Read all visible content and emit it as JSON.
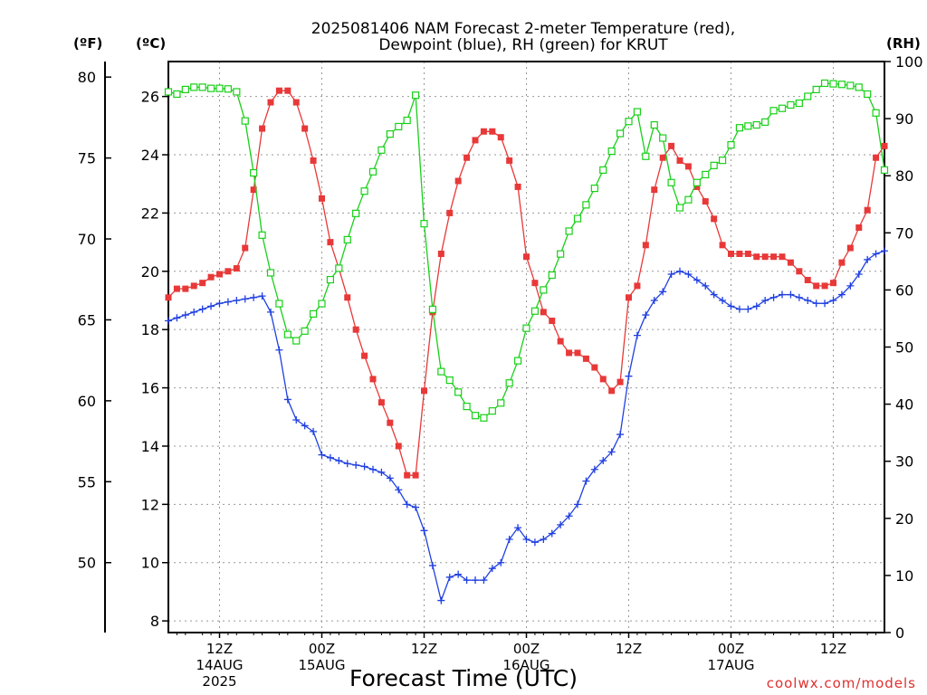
{
  "chart_data": {
    "type": "line",
    "title": [
      "2025081406 NAM Forecast 2-meter Temperature (red),",
      "Dewpoint (blue), RH (green) for KRUT"
    ],
    "xlabel": "Forecast Time (UTC)",
    "units": {
      "fahrenheit": "(ºF)",
      "celsius": "(ºC)",
      "rh": "(RH)"
    },
    "credit": "coolwx.com/models",
    "x_range_hours": [
      0,
      84
    ],
    "x_ticks": [
      {
        "hour": 6,
        "lines": [
          "12Z",
          "14AUG",
          "2025"
        ]
      },
      {
        "hour": 18,
        "lines": [
          "00Z",
          "15AUG"
        ]
      },
      {
        "hour": 30,
        "lines": [
          "12Z"
        ]
      },
      {
        "hour": 42,
        "lines": [
          "00Z",
          "16AUG"
        ]
      },
      {
        "hour": 54,
        "lines": [
          "12Z"
        ]
      },
      {
        "hour": 66,
        "lines": [
          "00Z",
          "17AUG"
        ]
      },
      {
        "hour": 78,
        "lines": [
          "12Z"
        ]
      }
    ],
    "y_celsius": {
      "range": [
        7.6,
        27.2
      ],
      "ticks": [
        8,
        10,
        12,
        14,
        16,
        18,
        20,
        22,
        24,
        26
      ]
    },
    "y_fahrenheit": {
      "ticks": [
        50,
        55,
        60,
        65,
        70,
        75,
        80
      ]
    },
    "y_rh": {
      "range": [
        0,
        100
      ],
      "ticks": [
        0,
        10,
        20,
        30,
        40,
        50,
        60,
        70,
        80,
        90,
        100
      ]
    },
    "grid": true,
    "colors": {
      "temperature": "#e83838",
      "dewpoint": "#2040e0",
      "rh": "#18d018"
    },
    "series": [
      {
        "key": "temperature",
        "unit": "C",
        "marker": "filled-square",
        "points": [
          [
            0,
            19.1
          ],
          [
            1,
            19.4
          ],
          [
            2,
            19.4
          ],
          [
            3,
            19.5
          ],
          [
            4,
            19.6
          ],
          [
            5,
            19.8
          ],
          [
            6,
            19.9
          ],
          [
            7,
            20.0
          ],
          [
            8,
            20.1
          ],
          [
            9,
            20.8
          ],
          [
            10,
            22.8
          ],
          [
            11,
            24.9
          ],
          [
            12,
            25.8
          ],
          [
            13,
            26.2
          ],
          [
            14,
            26.2
          ],
          [
            15,
            25.8
          ],
          [
            16,
            24.9
          ],
          [
            17,
            23.8
          ],
          [
            18,
            22.5
          ],
          [
            19,
            21.0
          ],
          [
            20,
            20.1
          ],
          [
            21,
            19.1
          ],
          [
            22,
            18.0
          ],
          [
            23,
            17.1
          ],
          [
            24,
            16.3
          ],
          [
            25,
            15.5
          ],
          [
            26,
            14.8
          ],
          [
            27,
            14.0
          ],
          [
            28,
            13.0
          ],
          [
            29,
            13.0
          ],
          [
            30,
            15.9
          ],
          [
            31,
            18.6
          ],
          [
            32,
            20.6
          ],
          [
            33,
            22.0
          ],
          [
            34,
            23.1
          ],
          [
            35,
            23.9
          ],
          [
            36,
            24.5
          ],
          [
            37,
            24.8
          ],
          [
            38,
            24.8
          ],
          [
            39,
            24.6
          ],
          [
            40,
            23.8
          ],
          [
            41,
            22.9
          ],
          [
            42,
            20.5
          ],
          [
            43,
            19.6
          ],
          [
            44,
            18.6
          ],
          [
            45,
            18.3
          ],
          [
            46,
            17.6
          ],
          [
            47,
            17.2
          ],
          [
            48,
            17.2
          ],
          [
            49,
            17.0
          ],
          [
            50,
            16.7
          ],
          [
            51,
            16.3
          ],
          [
            52,
            15.9
          ],
          [
            53,
            16.2
          ],
          [
            54,
            19.1
          ],
          [
            55,
            19.5
          ],
          [
            56,
            20.9
          ],
          [
            57,
            22.8
          ],
          [
            58,
            23.9
          ],
          [
            59,
            24.3
          ],
          [
            60,
            23.8
          ],
          [
            61,
            23.6
          ],
          [
            62,
            22.9
          ],
          [
            63,
            22.4
          ],
          [
            64,
            21.8
          ],
          [
            65,
            20.9
          ],
          [
            66,
            20.6
          ],
          [
            67,
            20.6
          ],
          [
            68,
            20.6
          ],
          [
            69,
            20.5
          ],
          [
            70,
            20.5
          ],
          [
            71,
            20.5
          ],
          [
            72,
            20.5
          ],
          [
            73,
            20.3
          ],
          [
            74,
            20.0
          ],
          [
            75,
            19.7
          ],
          [
            76,
            19.5
          ],
          [
            77,
            19.5
          ],
          [
            78,
            19.6
          ],
          [
            79,
            20.3
          ],
          [
            80,
            20.8
          ],
          [
            81,
            21.5
          ],
          [
            82,
            22.1
          ],
          [
            83,
            23.9
          ],
          [
            84,
            24.3
          ]
        ]
      },
      {
        "key": "dewpoint",
        "unit": "C",
        "marker": "plus",
        "points": [
          [
            0,
            18.3
          ],
          [
            1,
            18.4
          ],
          [
            2,
            18.5
          ],
          [
            3,
            18.6
          ],
          [
            4,
            18.7
          ],
          [
            5,
            18.8
          ],
          [
            6,
            18.9
          ],
          [
            7,
            18.95
          ],
          [
            8,
            19.0
          ],
          [
            9,
            19.05
          ],
          [
            10,
            19.1
          ],
          [
            11,
            19.15
          ],
          [
            12,
            18.6
          ],
          [
            13,
            17.3
          ],
          [
            14,
            15.6
          ],
          [
            15,
            14.9
          ],
          [
            16,
            14.7
          ],
          [
            17,
            14.5
          ],
          [
            18,
            13.7
          ],
          [
            19,
            13.6
          ],
          [
            20,
            13.5
          ],
          [
            21,
            13.4
          ],
          [
            22,
            13.35
          ],
          [
            23,
            13.3
          ],
          [
            24,
            13.2
          ],
          [
            25,
            13.1
          ],
          [
            26,
            12.9
          ],
          [
            27,
            12.5
          ],
          [
            28,
            12.0
          ],
          [
            29,
            11.9
          ],
          [
            30,
            11.1
          ],
          [
            31,
            9.9
          ],
          [
            32,
            8.7
          ],
          [
            33,
            9.5
          ],
          [
            34,
            9.6
          ],
          [
            35,
            9.4
          ],
          [
            36,
            9.4
          ],
          [
            37,
            9.4
          ],
          [
            38,
            9.8
          ],
          [
            39,
            10.0
          ],
          [
            40,
            10.8
          ],
          [
            41,
            11.2
          ],
          [
            42,
            10.8
          ],
          [
            43,
            10.7
          ],
          [
            44,
            10.8
          ],
          [
            45,
            11.0
          ],
          [
            46,
            11.3
          ],
          [
            47,
            11.6
          ],
          [
            48,
            12.0
          ],
          [
            49,
            12.8
          ],
          [
            50,
            13.2
          ],
          [
            51,
            13.5
          ],
          [
            52,
            13.8
          ],
          [
            53,
            14.4
          ],
          [
            54,
            16.4
          ],
          [
            55,
            17.8
          ],
          [
            56,
            18.5
          ],
          [
            57,
            19.0
          ],
          [
            58,
            19.3
          ],
          [
            59,
            19.9
          ],
          [
            60,
            20.0
          ],
          [
            61,
            19.9
          ],
          [
            62,
            19.7
          ],
          [
            63,
            19.5
          ],
          [
            64,
            19.2
          ],
          [
            65,
            19.0
          ],
          [
            66,
            18.8
          ],
          [
            67,
            18.7
          ],
          [
            68,
            18.7
          ],
          [
            69,
            18.8
          ],
          [
            70,
            19.0
          ],
          [
            71,
            19.1
          ],
          [
            72,
            19.2
          ],
          [
            73,
            19.2
          ],
          [
            74,
            19.1
          ],
          [
            75,
            19.0
          ],
          [
            76,
            18.9
          ],
          [
            77,
            18.9
          ],
          [
            78,
            19.0
          ],
          [
            79,
            19.2
          ],
          [
            80,
            19.5
          ],
          [
            81,
            19.9
          ],
          [
            82,
            20.4
          ],
          [
            83,
            20.6
          ],
          [
            84,
            20.7
          ]
        ]
      },
      {
        "key": "rh",
        "unit": "%",
        "marker": "open-square",
        "points": [
          [
            0,
            94.7
          ],
          [
            1,
            94.3
          ],
          [
            2,
            95.1
          ],
          [
            3,
            95.5
          ],
          [
            4,
            95.5
          ],
          [
            5,
            95.3
          ],
          [
            6,
            95.3
          ],
          [
            7,
            95.2
          ],
          [
            8,
            94.7
          ],
          [
            9,
            89.6
          ],
          [
            10,
            80.5
          ],
          [
            11,
            69.6
          ],
          [
            12,
            63.0
          ],
          [
            13,
            57.6
          ],
          [
            14,
            52.2
          ],
          [
            15,
            51.1
          ],
          [
            16,
            52.8
          ],
          [
            17,
            55.8
          ],
          [
            18,
            57.6
          ],
          [
            19,
            61.8
          ],
          [
            20,
            63.8
          ],
          [
            21,
            68.8
          ],
          [
            22,
            73.4
          ],
          [
            23,
            77.3
          ],
          [
            24,
            80.7
          ],
          [
            25,
            84.5
          ],
          [
            26,
            87.3
          ],
          [
            27,
            88.6
          ],
          [
            28,
            89.7
          ],
          [
            29,
            94.1
          ],
          [
            30,
            71.6
          ],
          [
            31,
            56.6
          ],
          [
            32,
            45.7
          ],
          [
            33,
            44.2
          ],
          [
            34,
            42.1
          ],
          [
            35,
            39.6
          ],
          [
            36,
            38.0
          ],
          [
            37,
            37.6
          ],
          [
            38,
            38.8
          ],
          [
            39,
            40.2
          ],
          [
            40,
            43.7
          ],
          [
            41,
            47.6
          ],
          [
            42,
            53.3
          ],
          [
            43,
            56.3
          ],
          [
            44,
            60.0
          ],
          [
            45,
            62.6
          ],
          [
            46,
            66.3
          ],
          [
            47,
            70.3
          ],
          [
            48,
            72.5
          ],
          [
            49,
            74.9
          ],
          [
            50,
            77.8
          ],
          [
            51,
            81.0
          ],
          [
            52,
            84.3
          ],
          [
            53,
            87.4
          ],
          [
            54,
            89.5
          ],
          [
            55,
            91.2
          ],
          [
            56,
            83.4
          ],
          [
            57,
            88.9
          ],
          [
            58,
            86.6
          ],
          [
            59,
            78.8
          ],
          [
            60,
            74.4
          ],
          [
            61,
            75.8
          ],
          [
            62,
            78.8
          ],
          [
            63,
            80.2
          ],
          [
            64,
            81.8
          ],
          [
            65,
            82.7
          ],
          [
            66,
            85.4
          ],
          [
            67,
            88.4
          ],
          [
            68,
            88.7
          ],
          [
            69,
            88.9
          ],
          [
            70,
            89.4
          ],
          [
            71,
            91.4
          ],
          [
            72,
            91.8
          ],
          [
            73,
            92.4
          ],
          [
            74,
            92.7
          ],
          [
            75,
            93.9
          ],
          [
            76,
            95.1
          ],
          [
            77,
            96.2
          ],
          [
            78,
            96.1
          ],
          [
            79,
            96.0
          ],
          [
            80,
            95.8
          ],
          [
            81,
            95.5
          ],
          [
            82,
            94.3
          ],
          [
            83,
            91.0
          ],
          [
            84,
            81.0
          ]
        ]
      }
    ]
  }
}
